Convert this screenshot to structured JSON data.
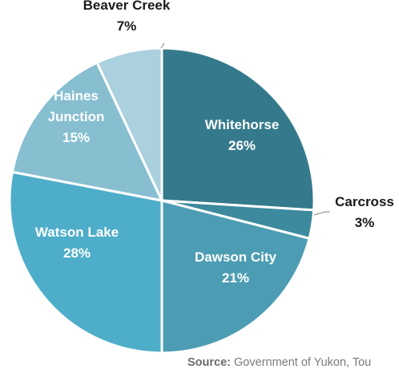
{
  "chart_data": {
    "type": "pie",
    "slices": [
      {
        "label": [
          "Whitehorse"
        ],
        "value": 26,
        "value_label": "26%",
        "color": "#357a8c",
        "text_color": "#ffffff",
        "label_pos": "inside"
      },
      {
        "label": [
          "Carcross"
        ],
        "value": 3,
        "value_label": "3%",
        "color": "#3d8a9e",
        "text_color": "#1a1a1a",
        "label_pos": "outside"
      },
      {
        "label": [
          "Dawson City"
        ],
        "value": 21,
        "value_label": "21%",
        "color": "#4c9db3",
        "text_color": "#ffffff",
        "label_pos": "inside"
      },
      {
        "label": [
          "Watson Lake"
        ],
        "value": 28,
        "value_label": "28%",
        "color": "#4eaec9",
        "text_color": "#ffffff",
        "label_pos": "inside"
      },
      {
        "label": [
          "Haines",
          "Junction"
        ],
        "value": 15,
        "value_label": "15%",
        "color": "#87bfd1",
        "text_color": "#ffffff",
        "label_pos": "inside"
      },
      {
        "label": [
          "Beaver Creek"
        ],
        "value": 7,
        "value_label": "7%",
        "color": "#abd1de",
        "text_color": "#1a1a1a",
        "label_pos": "outside"
      }
    ]
  },
  "source": {
    "prefix": "Source:",
    "text": "Government of Yukon, Tou"
  }
}
